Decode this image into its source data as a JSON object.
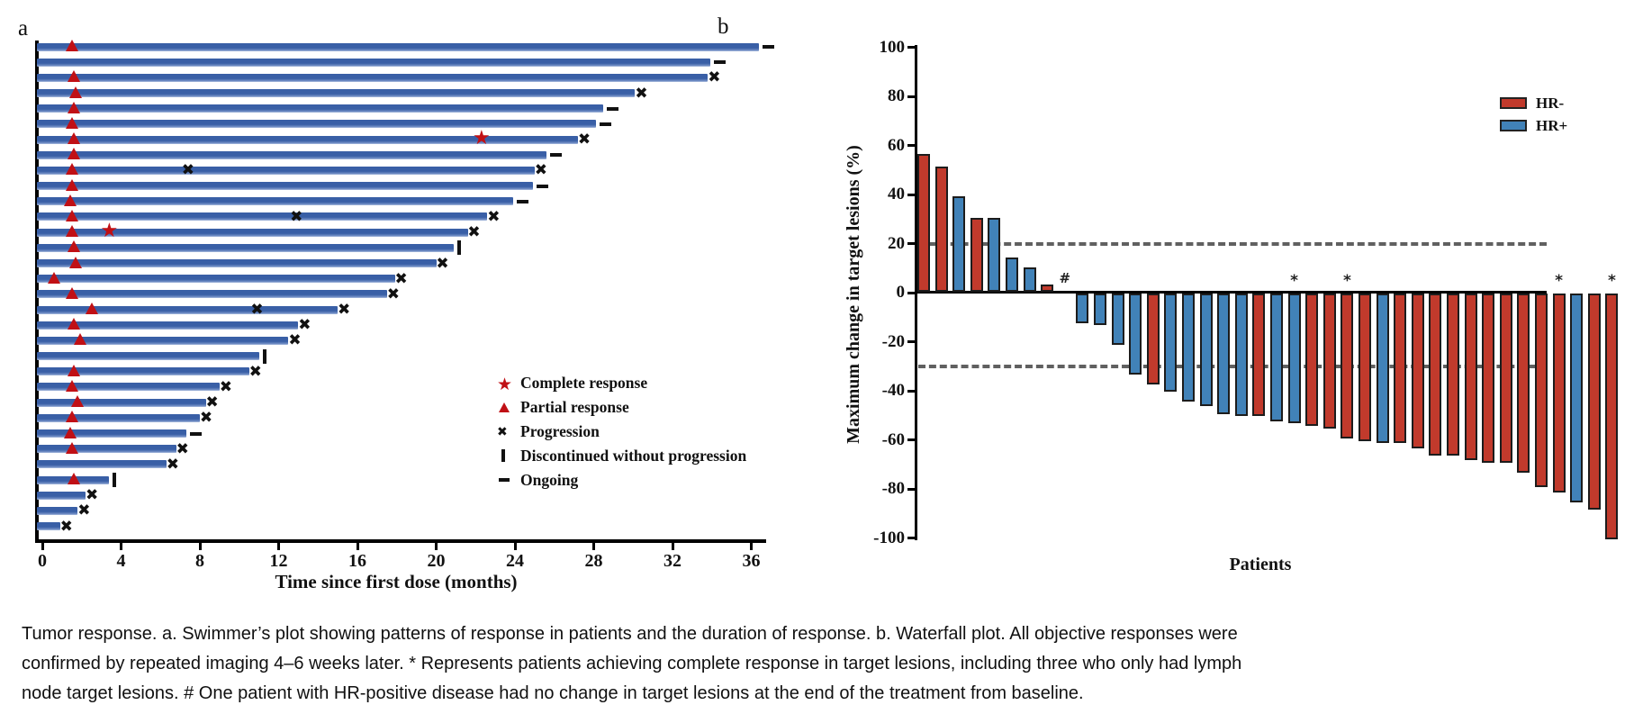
{
  "colors": {
    "swimmer_blue": "#3a5fa6",
    "hr_neg_red": "#c13a2c",
    "hr_pos_blue": "#4182b8",
    "marker_red": "#c01015",
    "dash_gray": "#606060",
    "axis_black": "#000000"
  },
  "panel_a": {
    "label": "a",
    "xlabel": "Time since first dose (months)",
    "x_ticks": [
      0,
      4,
      8,
      12,
      16,
      20,
      24,
      28,
      32,
      36
    ],
    "legend": [
      {
        "symbol": "star",
        "label": "Complete response"
      },
      {
        "symbol": "triangle",
        "label": "Partial response"
      },
      {
        "symbol": "x",
        "label": "Progression"
      },
      {
        "symbol": "bar",
        "label": "Discontinued without progression"
      },
      {
        "symbol": "dash",
        "label": "Ongoing"
      }
    ]
  },
  "panel_b": {
    "label": "b",
    "ylabel": "Maximum change in target lesions (%)",
    "xlabel": "Patients",
    "y_ticks": [
      100,
      80,
      60,
      40,
      20,
      0,
      -20,
      -40,
      -60,
      -80,
      -100
    ],
    "ref_lines": [
      20,
      -30
    ],
    "legend": [
      {
        "label": "HR-",
        "color": "#c13a2c"
      },
      {
        "label": "HR+",
        "color": "#4182b8"
      }
    ],
    "hash_symbol": "#",
    "star_symbol": "*"
  },
  "caption": {
    "lines": [
      "Tumor response. a. Swimmer’s plot showing patterns of response in patients and the duration of response. b. Waterfall plot. All objective responses were",
      "confirmed by repeated imaging 4–6 weeks later. * Represents patients achieving complete response in target lesions, including three who only had lymph",
      "node target lesions. # One patient with HR-positive disease had no change in target lesions at the end of the treatment from baseline."
    ]
  },
  "chart_data": [
    {
      "type": "swimmer",
      "panel": "a",
      "xlabel": "Time since first dose (months)",
      "xlim": [
        0,
        36.6
      ],
      "x_ticks": [
        0,
        4,
        8,
        12,
        16,
        20,
        24,
        28,
        32,
        36
      ],
      "legend": [
        "Complete response",
        "Partial response",
        "Progression",
        "Discontinued without progression",
        "Ongoing"
      ],
      "patients": [
        {
          "duration": 36.4,
          "end": "ongoing",
          "markers": [
            {
              "t": "pr",
              "month": 1.5
            }
          ]
        },
        {
          "duration": 33.9,
          "end": "ongoing",
          "markers": []
        },
        {
          "duration": 33.8,
          "end": "progression",
          "markers": [
            {
              "t": "pr",
              "month": 1.6
            }
          ]
        },
        {
          "duration": 30.1,
          "end": "progression",
          "markers": [
            {
              "t": "pr",
              "month": 1.7
            }
          ]
        },
        {
          "duration": 28.5,
          "end": "ongoing",
          "markers": [
            {
              "t": "pr",
              "month": 1.6
            }
          ]
        },
        {
          "duration": 28.1,
          "end": "ongoing",
          "markers": [
            {
              "t": "pr",
              "month": 1.5
            }
          ]
        },
        {
          "duration": 27.2,
          "end": "progression",
          "markers": [
            {
              "t": "pr",
              "month": 1.6
            },
            {
              "t": "cr",
              "month": 22.3
            }
          ]
        },
        {
          "duration": 25.6,
          "end": "ongoing",
          "markers": [
            {
              "t": "pr",
              "month": 1.6
            }
          ]
        },
        {
          "duration": 25.0,
          "end": "progression",
          "markers": [
            {
              "t": "pr",
              "month": 1.5
            },
            {
              "t": "x",
              "month": 7.4
            }
          ]
        },
        {
          "duration": 24.9,
          "end": "ongoing",
          "markers": [
            {
              "t": "pr",
              "month": 1.5
            }
          ]
        },
        {
          "duration": 23.9,
          "end": "ongoing",
          "markers": [
            {
              "t": "pr",
              "month": 1.4
            }
          ]
        },
        {
          "duration": 22.6,
          "end": "progression",
          "markers": [
            {
              "t": "pr",
              "month": 1.5
            },
            {
              "t": "x",
              "month": 12.9
            }
          ]
        },
        {
          "duration": 21.6,
          "end": "progression",
          "markers": [
            {
              "t": "pr",
              "month": 1.5
            },
            {
              "t": "cr",
              "month": 3.4
            }
          ]
        },
        {
          "duration": 20.9,
          "end": "discontinued",
          "markers": [
            {
              "t": "pr",
              "month": 1.6
            }
          ]
        },
        {
          "duration": 20.0,
          "end": "progression",
          "markers": [
            {
              "t": "pr",
              "month": 1.7
            }
          ]
        },
        {
          "duration": 17.9,
          "end": "progression",
          "markers": [
            {
              "t": "pr",
              "month": 0.6
            }
          ]
        },
        {
          "duration": 17.5,
          "end": "progression",
          "markers": [
            {
              "t": "pr",
              "month": 1.5
            }
          ]
        },
        {
          "duration": 15.0,
          "end": "progression",
          "markers": [
            {
              "t": "pr",
              "month": 2.5
            },
            {
              "t": "x",
              "month": 10.9
            }
          ]
        },
        {
          "duration": 13.0,
          "end": "progression",
          "markers": [
            {
              "t": "pr",
              "month": 1.6
            }
          ]
        },
        {
          "duration": 12.5,
          "end": "progression",
          "markers": [
            {
              "t": "pr",
              "month": 1.9
            }
          ]
        },
        {
          "duration": 11.0,
          "end": "discontinued",
          "markers": []
        },
        {
          "duration": 10.5,
          "end": "progression",
          "markers": [
            {
              "t": "pr",
              "month": 1.6
            }
          ]
        },
        {
          "duration": 9.0,
          "end": "progression",
          "markers": [
            {
              "t": "pr",
              "month": 1.5
            }
          ]
        },
        {
          "duration": 8.3,
          "end": "progression",
          "markers": [
            {
              "t": "pr",
              "month": 1.8
            }
          ]
        },
        {
          "duration": 8.0,
          "end": "progression",
          "markers": [
            {
              "t": "pr",
              "month": 1.5
            }
          ]
        },
        {
          "duration": 7.3,
          "end": "ongoing",
          "markers": [
            {
              "t": "pr",
              "month": 1.4
            }
          ]
        },
        {
          "duration": 6.8,
          "end": "progression",
          "markers": [
            {
              "t": "pr",
              "month": 1.5
            }
          ]
        },
        {
          "duration": 6.3,
          "end": "progression",
          "markers": []
        },
        {
          "duration": 3.4,
          "end": "discontinued",
          "markers": [
            {
              "t": "pr",
              "month": 1.6
            }
          ]
        },
        {
          "duration": 2.2,
          "end": "progression",
          "markers": []
        },
        {
          "duration": 1.8,
          "end": "progression",
          "markers": []
        },
        {
          "duration": 0.9,
          "end": "progression",
          "markers": []
        }
      ]
    },
    {
      "type": "bar",
      "subtype": "waterfall",
      "panel": "b",
      "ylabel": "Maximum change in target lesions (%)",
      "xlabel": "Patients",
      "ylim": [
        -100,
        100
      ],
      "y_ticks": [
        100,
        80,
        60,
        40,
        20,
        0,
        -20,
        -40,
        -60,
        -80,
        -100
      ],
      "ref_lines": [
        20,
        -30
      ],
      "legend_entries": [
        {
          "name": "HR-",
          "color": "#c13a2c"
        },
        {
          "name": "HR+",
          "color": "#4182b8"
        }
      ],
      "values": [
        {
          "v": 56,
          "hr": "HR-"
        },
        {
          "v": 51,
          "hr": "HR-"
        },
        {
          "v": 39,
          "hr": "HR+"
        },
        {
          "v": 30,
          "hr": "HR-"
        },
        {
          "v": 30,
          "hr": "HR+"
        },
        {
          "v": 14,
          "hr": "HR+"
        },
        {
          "v": 10,
          "hr": "HR+"
        },
        {
          "v": 3,
          "hr": "HR-"
        },
        {
          "v": 0,
          "hr": "HR+",
          "annot": "#"
        },
        {
          "v": -12,
          "hr": "HR+"
        },
        {
          "v": -13,
          "hr": "HR+"
        },
        {
          "v": -21,
          "hr": "HR+"
        },
        {
          "v": -33,
          "hr": "HR+"
        },
        {
          "v": -37,
          "hr": "HR-"
        },
        {
          "v": -40,
          "hr": "HR+"
        },
        {
          "v": -44,
          "hr": "HR+"
        },
        {
          "v": -46,
          "hr": "HR+"
        },
        {
          "v": -49,
          "hr": "HR+"
        },
        {
          "v": -50,
          "hr": "HR+"
        },
        {
          "v": -50,
          "hr": "HR-"
        },
        {
          "v": -52,
          "hr": "HR+"
        },
        {
          "v": -53,
          "hr": "HR+",
          "annot": "*"
        },
        {
          "v": -54,
          "hr": "HR-"
        },
        {
          "v": -55,
          "hr": "HR-"
        },
        {
          "v": -59,
          "hr": "HR-",
          "annot": "*"
        },
        {
          "v": -60,
          "hr": "HR-"
        },
        {
          "v": -61,
          "hr": "HR+"
        },
        {
          "v": -61,
          "hr": "HR-"
        },
        {
          "v": -63,
          "hr": "HR-"
        },
        {
          "v": -66,
          "hr": "HR-"
        },
        {
          "v": -66,
          "hr": "HR-"
        },
        {
          "v": -68,
          "hr": "HR-"
        },
        {
          "v": -69,
          "hr": "HR-"
        },
        {
          "v": -69,
          "hr": "HR-"
        },
        {
          "v": -73,
          "hr": "HR-"
        },
        {
          "v": -79,
          "hr": "HR-"
        },
        {
          "v": -81,
          "hr": "HR-",
          "annot": "*"
        },
        {
          "v": -85,
          "hr": "HR+"
        },
        {
          "v": -88,
          "hr": "HR-"
        },
        {
          "v": -100,
          "hr": "HR-",
          "annot": "*"
        }
      ]
    }
  ]
}
